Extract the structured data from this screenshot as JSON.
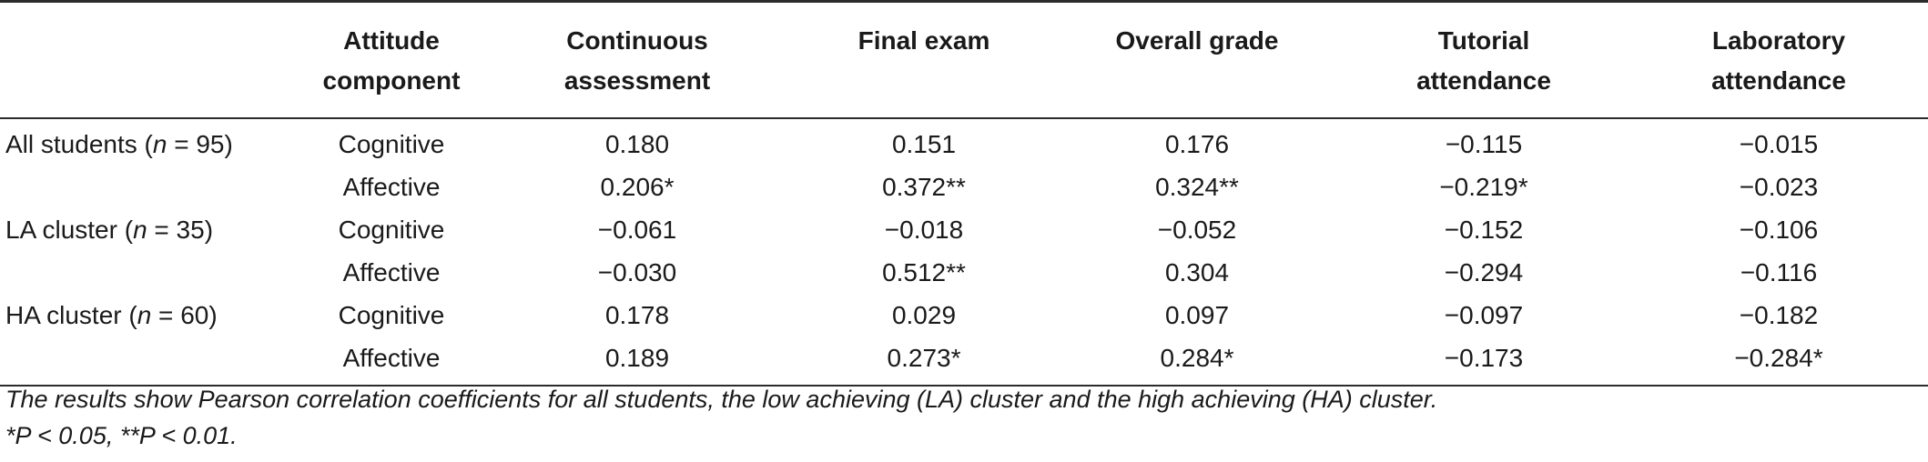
{
  "table": {
    "headers": [
      "",
      "Attitude component",
      "Continuous assessment",
      "Final exam",
      "Overall grade",
      "Tutorial attendance",
      "Laboratory attendance"
    ],
    "header_lines": [
      [
        "",
        ""
      ],
      [
        "Attitude",
        "component"
      ],
      [
        "Continuous",
        "assessment"
      ],
      [
        "Final exam",
        ""
      ],
      [
        "Overall grade",
        ""
      ],
      [
        "Tutorial",
        "attendance"
      ],
      [
        "Laboratory",
        "attendance"
      ]
    ],
    "groups": [
      {
        "label_prefix": "All students (",
        "label_n": "n",
        "label_suffix": " = 95)",
        "rows": [
          [
            "Cognitive",
            "0.180",
            "0.151",
            "0.176",
            "−0.115",
            "−0.015"
          ],
          [
            "Affective",
            "0.206*",
            "0.372**",
            "0.324**",
            "−0.219*",
            "−0.023"
          ]
        ]
      },
      {
        "label_prefix": "LA cluster (",
        "label_n": "n",
        "label_suffix": " = 35)",
        "rows": [
          [
            "Cognitive",
            "−0.061",
            "−0.018",
            "−0.052",
            "−0.152",
            "−0.106"
          ],
          [
            "Affective",
            "−0.030",
            "0.512**",
            "0.304",
            "−0.294",
            "−0.116"
          ]
        ]
      },
      {
        "label_prefix": "HA cluster (",
        "label_n": "n",
        "label_suffix": " = 60)",
        "rows": [
          [
            "Cognitive",
            "0.178",
            "0.029",
            "0.097",
            "−0.097",
            "−0.182"
          ],
          [
            "Affective",
            "0.189",
            "0.273*",
            "0.284*",
            "−0.173",
            "−0.284*"
          ]
        ]
      }
    ]
  },
  "notes": {
    "caption": "The results show Pearson correlation coefficients for all students, the low achieving (LA) cluster and the high achieving (HA) cluster.",
    "significance": "*P < 0.05, **P < 0.01."
  }
}
